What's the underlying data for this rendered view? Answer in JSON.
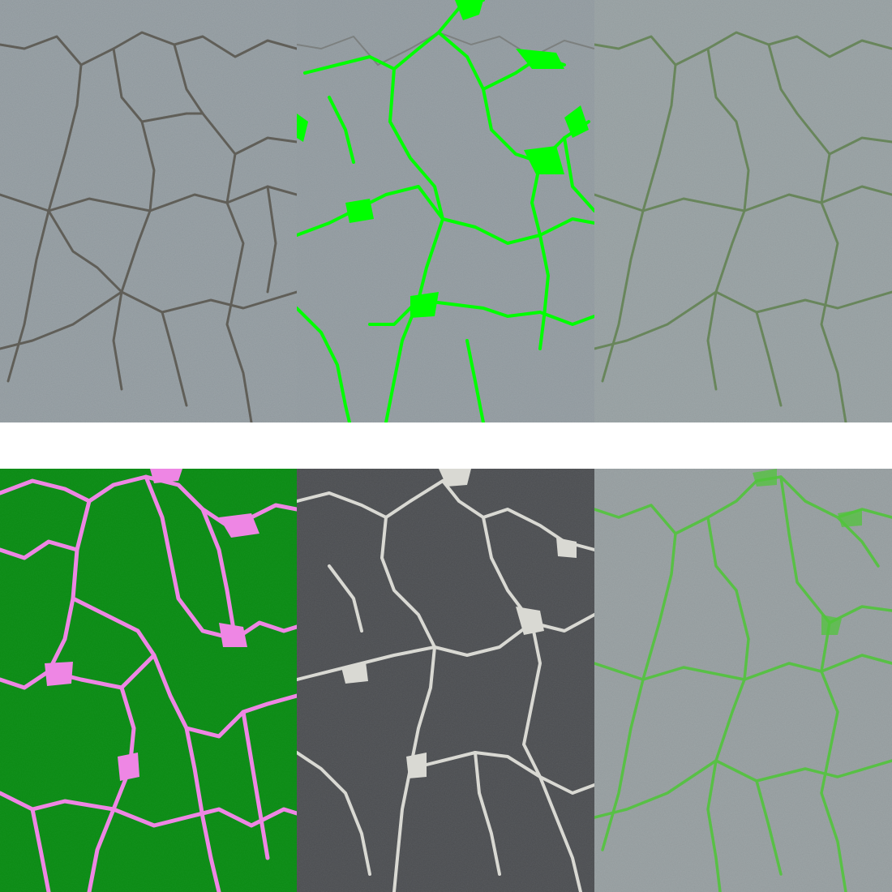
{
  "grid": {
    "rows": 2,
    "cols": 3
  },
  "panels": [
    {
      "id": "p1",
      "kind": "original-photo",
      "palette": {
        "surface": "#8e979c",
        "crack": "#4f4a40"
      }
    },
    {
      "id": "p2",
      "kind": "green-crack-mask-overlay",
      "palette": {
        "surface": "#8e979c",
        "crack": "#00ff00"
      }
    },
    {
      "id": "p3",
      "kind": "faint-green-crack-overlay",
      "palette": {
        "surface": "#939c9e",
        "crack": "#5d7f4a"
      }
    },
    {
      "id": "p4",
      "kind": "green-surface-pink-cracks",
      "palette": {
        "surface": "#0b8a12",
        "crack": "#ee86e4"
      }
    },
    {
      "id": "p5",
      "kind": "dark-surface-white-cracks",
      "palette": {
        "surface": "#4a4c4f",
        "crack": "#d9d9d3"
      }
    },
    {
      "id": "p6",
      "kind": "photo-green-crack-highlight",
      "palette": {
        "surface": "#929a9c",
        "crack": "#52c43c"
      }
    }
  ],
  "colors": {
    "background": "#ffffff"
  }
}
